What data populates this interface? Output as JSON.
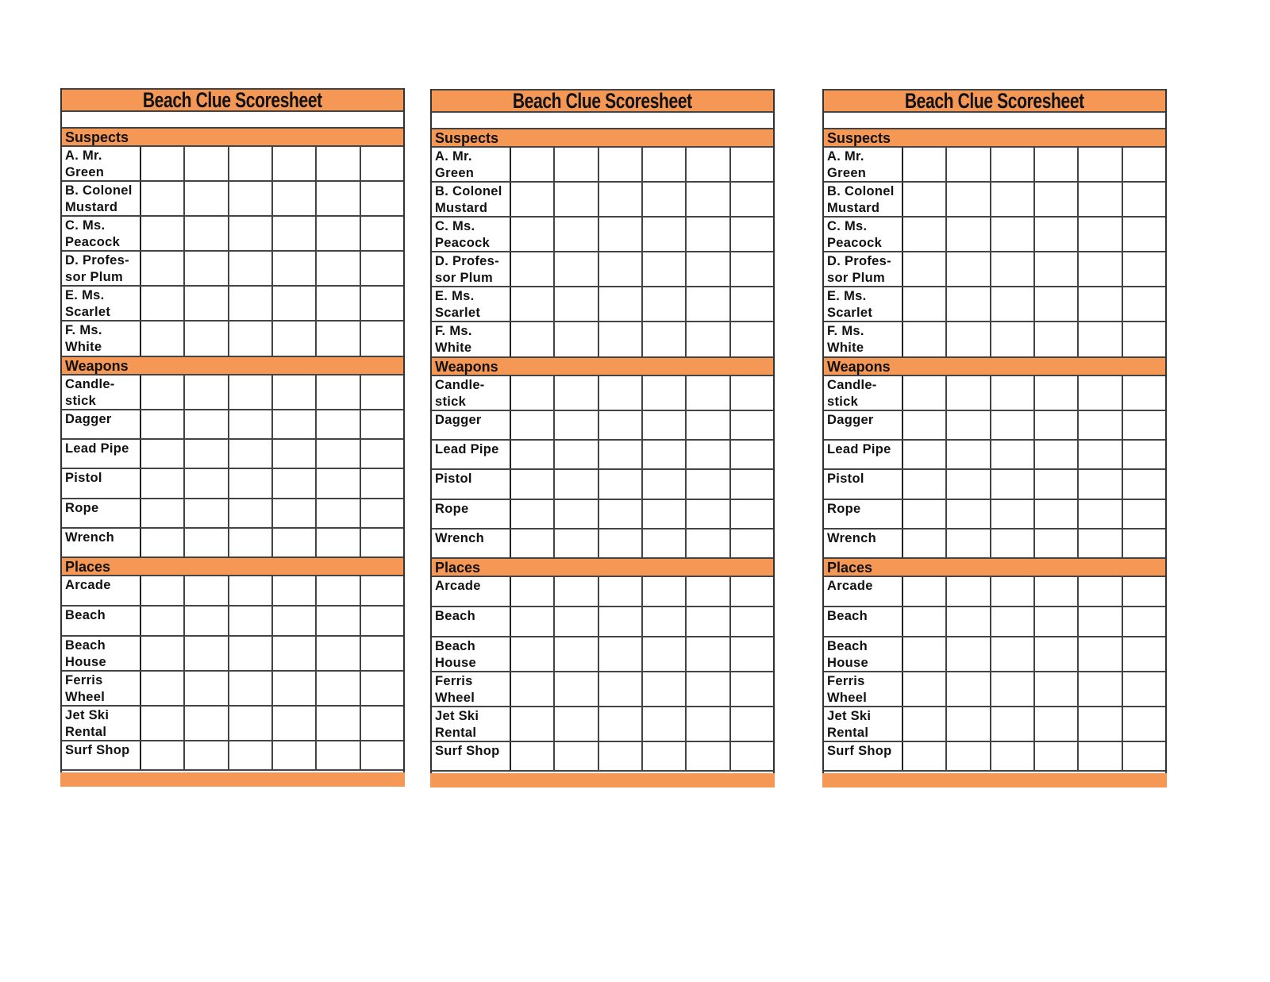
{
  "accent_color": "#F59755",
  "sheets": [
    {
      "title": "Beach Clue Scoresheet"
    },
    {
      "title": "Beach Clue Scoresheet"
    },
    {
      "title": "Beach Clue Scoresheet"
    }
  ],
  "sections": [
    {
      "label": "Suspects",
      "items": [
        "A. Mr. Green",
        "B. Colonel Mustard",
        "C. Ms. Peacock",
        "D. Profes-sor Plum",
        "E. Ms. Scarlet",
        "F. Ms. White"
      ]
    },
    {
      "label": "Weapons",
      "items": [
        "Candle-stick",
        "Dagger",
        "Lead Pipe",
        "Pistol",
        "Rope",
        "Wrench"
      ]
    },
    {
      "label": "Places",
      "items": [
        "Arcade",
        "Beach",
        "Beach House",
        "Ferris Wheel",
        "Jet Ski Rental",
        "Surf Shop"
      ]
    }
  ]
}
